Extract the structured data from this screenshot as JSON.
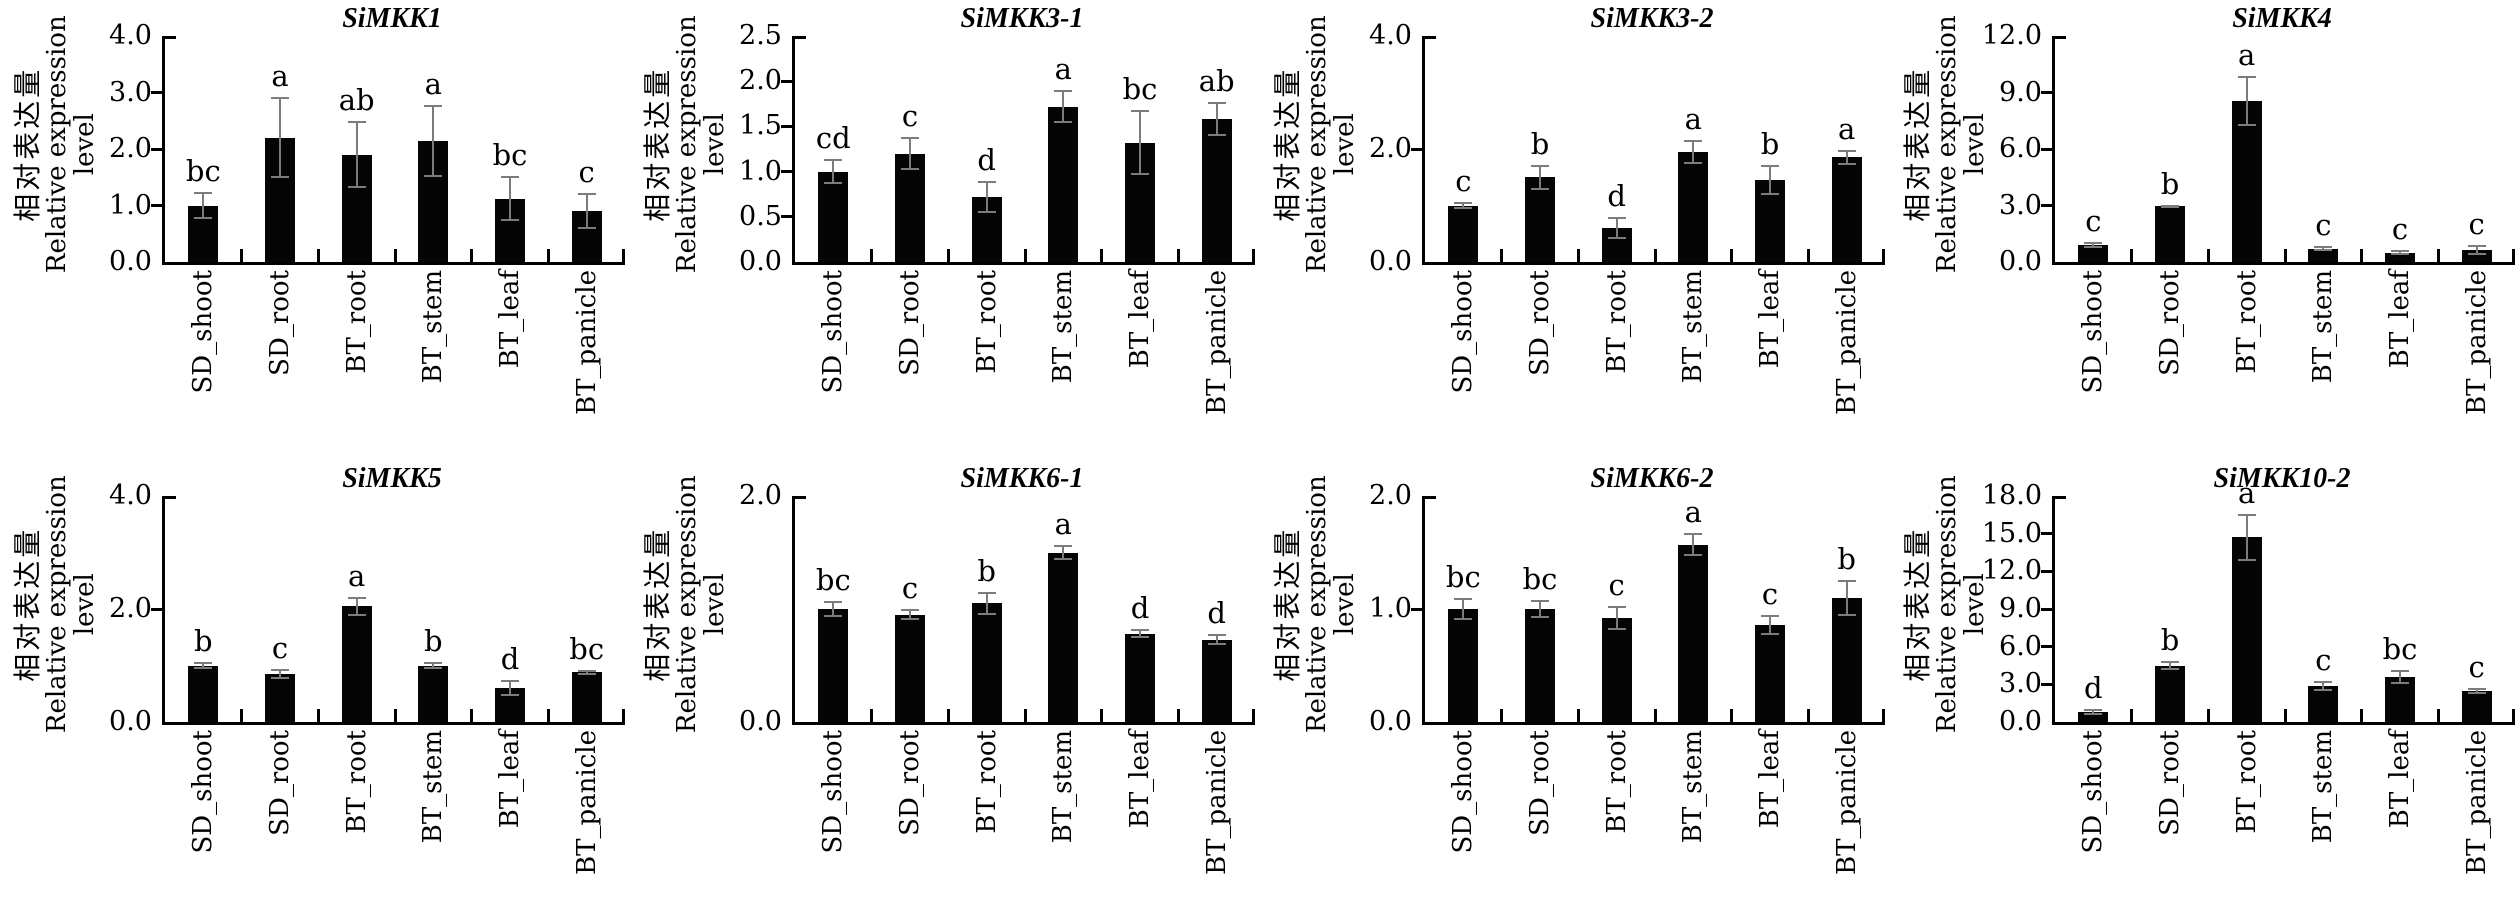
{
  "figure": {
    "background": "#ffffff",
    "bar_color": "#050505",
    "error_bar_color": "#7c7c7c",
    "axis_color": "#000000",
    "ylabel": {
      "zh": "相对表达量",
      "en_line1": "Relative expression",
      "en_line2": "level"
    }
  },
  "chart_data": [
    {
      "type": "bar",
      "title": "SiMKK1",
      "ylabel": "相对表达量 Relative expression level",
      "categories": [
        "SD_shoot",
        "SD_root",
        "BT_root",
        "BT_stem",
        "BT_leaf",
        "BT_panicle"
      ],
      "values": [
        1.0,
        2.2,
        1.9,
        2.15,
        1.12,
        0.9
      ],
      "errors": [
        0.22,
        0.7,
        0.57,
        0.62,
        0.38,
        0.3
      ],
      "letters": [
        "bc",
        "a",
        "ab",
        "a",
        "bc",
        "c"
      ],
      "ylim": [
        0,
        4.0
      ],
      "yticks": [
        0.0,
        1.0,
        2.0,
        3.0,
        4.0
      ],
      "ytick_labels": [
        "0.0",
        "1.0",
        "2.0",
        "3.0",
        "4.0"
      ],
      "grid": false,
      "legend": false
    },
    {
      "type": "bar",
      "title": "SiMKK3-1",
      "ylabel": "相对表达量 Relative expression level",
      "categories": [
        "SD_shoot",
        "SD_root",
        "BT_root",
        "BT_stem",
        "BT_leaf",
        "BT_panicle"
      ],
      "values": [
        1.0,
        1.2,
        0.72,
        1.72,
        1.32,
        1.58
      ],
      "errors": [
        0.13,
        0.17,
        0.17,
        0.17,
        0.35,
        0.18
      ],
      "letters": [
        "cd",
        "c",
        "d",
        "a",
        "bc",
        "ab"
      ],
      "ylim": [
        0,
        2.5
      ],
      "yticks": [
        0.0,
        0.5,
        1.0,
        1.5,
        2.0,
        2.5
      ],
      "ytick_labels": [
        "0.0",
        "0.5",
        "1.0",
        "1.5",
        "2.0",
        "2.5"
      ],
      "grid": false,
      "legend": false
    },
    {
      "type": "bar",
      "title": "SiMKK3-2",
      "ylabel": "相对表达量 Relative expression level",
      "categories": [
        "SD_shoot",
        "SD_root",
        "BT_root",
        "BT_stem",
        "BT_leaf",
        "BT_panicle"
      ],
      "values": [
        1.0,
        1.5,
        0.6,
        1.95,
        1.45,
        1.85
      ],
      "errors": [
        0.04,
        0.2,
        0.18,
        0.2,
        0.25,
        0.12
      ],
      "letters": [
        "c",
        "b",
        "d",
        "a",
        "b",
        "a"
      ],
      "ylim": [
        0,
        4.0
      ],
      "yticks": [
        0.0,
        2.0,
        4.0
      ],
      "ytick_labels": [
        "0.0",
        "2.0",
        "4.0"
      ],
      "grid": false,
      "legend": false
    },
    {
      "type": "bar",
      "title": "SiMKK4",
      "ylabel": "相对表达量 Relative expression level",
      "categories": [
        "SD_shoot",
        "SD_root",
        "BT_root",
        "BT_stem",
        "BT_leaf",
        "BT_panicle"
      ],
      "values": [
        0.9,
        2.95,
        8.55,
        0.7,
        0.5,
        0.65
      ],
      "errors": [
        0.1,
        0.05,
        1.3,
        0.08,
        0.07,
        0.2
      ],
      "letters": [
        "c",
        "b",
        "a",
        "c",
        "c",
        "c"
      ],
      "ylim": [
        0,
        12.0
      ],
      "yticks": [
        0.0,
        3.0,
        6.0,
        9.0,
        12.0
      ],
      "ytick_labels": [
        "0.0",
        "3.0",
        "6.0",
        "9.0",
        "12.0"
      ],
      "grid": false,
      "legend": false
    },
    {
      "type": "bar",
      "title": "SiMKK5",
      "ylabel": "相对表达量 Relative expression level",
      "categories": [
        "SD_shoot",
        "SD_root",
        "BT_root",
        "BT_stem",
        "BT_leaf",
        "BT_panicle"
      ],
      "values": [
        1.0,
        0.85,
        2.05,
        1.0,
        0.6,
        0.88
      ],
      "errors": [
        0.04,
        0.07,
        0.15,
        0.05,
        0.12,
        0.03
      ],
      "letters": [
        "b",
        "c",
        "a",
        "b",
        "d",
        "bc"
      ],
      "ylim": [
        0,
        4.0
      ],
      "yticks": [
        0.0,
        2.0,
        4.0
      ],
      "ytick_labels": [
        "0.0",
        "2.0",
        "4.0"
      ],
      "grid": false,
      "legend": false
    },
    {
      "type": "bar",
      "title": "SiMKK6-1",
      "ylabel": "相对表达量 Relative expression level",
      "categories": [
        "SD_shoot",
        "SD_root",
        "BT_root",
        "BT_stem",
        "BT_leaf",
        "BT_panicle"
      ],
      "values": [
        1.0,
        0.95,
        1.05,
        1.5,
        0.78,
        0.73
      ],
      "errors": [
        0.06,
        0.04,
        0.09,
        0.06,
        0.03,
        0.04
      ],
      "letters": [
        "bc",
        "c",
        "b",
        "a",
        "d",
        "d"
      ],
      "ylim": [
        0,
        2.0
      ],
      "yticks": [
        0.0,
        2.0
      ],
      "ytick_labels": [
        "0.0",
        "2.0"
      ],
      "grid": false,
      "legend": false
    },
    {
      "type": "bar",
      "title": "SiMKK6-2",
      "ylabel": "相对表达量 Relative expression level",
      "categories": [
        "SD_shoot",
        "SD_root",
        "BT_root",
        "BT_stem",
        "BT_leaf",
        "BT_panicle"
      ],
      "values": [
        1.0,
        1.0,
        0.92,
        1.57,
        0.86,
        1.1
      ],
      "errors": [
        0.09,
        0.07,
        0.1,
        0.09,
        0.08,
        0.15
      ],
      "letters": [
        "bc",
        "bc",
        "c",
        "a",
        "c",
        "b"
      ],
      "ylim": [
        0,
        2.0
      ],
      "yticks": [
        0.0,
        1.0,
        2.0
      ],
      "ytick_labels": [
        "0.0",
        "1.0",
        "2.0"
      ],
      "grid": false,
      "legend": false
    },
    {
      "type": "bar",
      "title": "SiMKK10-2",
      "ylabel": "相对表达量 Relative expression level",
      "categories": [
        "SD_shoot",
        "SD_root",
        "BT_root",
        "BT_stem",
        "BT_leaf",
        "BT_panicle"
      ],
      "values": [
        0.8,
        4.5,
        14.7,
        2.85,
        3.6,
        2.5
      ],
      "errors": [
        0.15,
        0.25,
        1.8,
        0.3,
        0.5,
        0.15
      ],
      "letters": [
        "d",
        "b",
        "a",
        "c",
        "bc",
        "c"
      ],
      "ylim": [
        0,
        18.0
      ],
      "yticks": [
        0.0,
        3.0,
        6.0,
        9.0,
        12.0,
        15.0,
        18.0
      ],
      "ytick_labels": [
        "0.0",
        "3.0",
        "6.0",
        "9.0",
        "12.0",
        "15.0",
        "18.0"
      ],
      "grid": false,
      "legend": false
    }
  ]
}
